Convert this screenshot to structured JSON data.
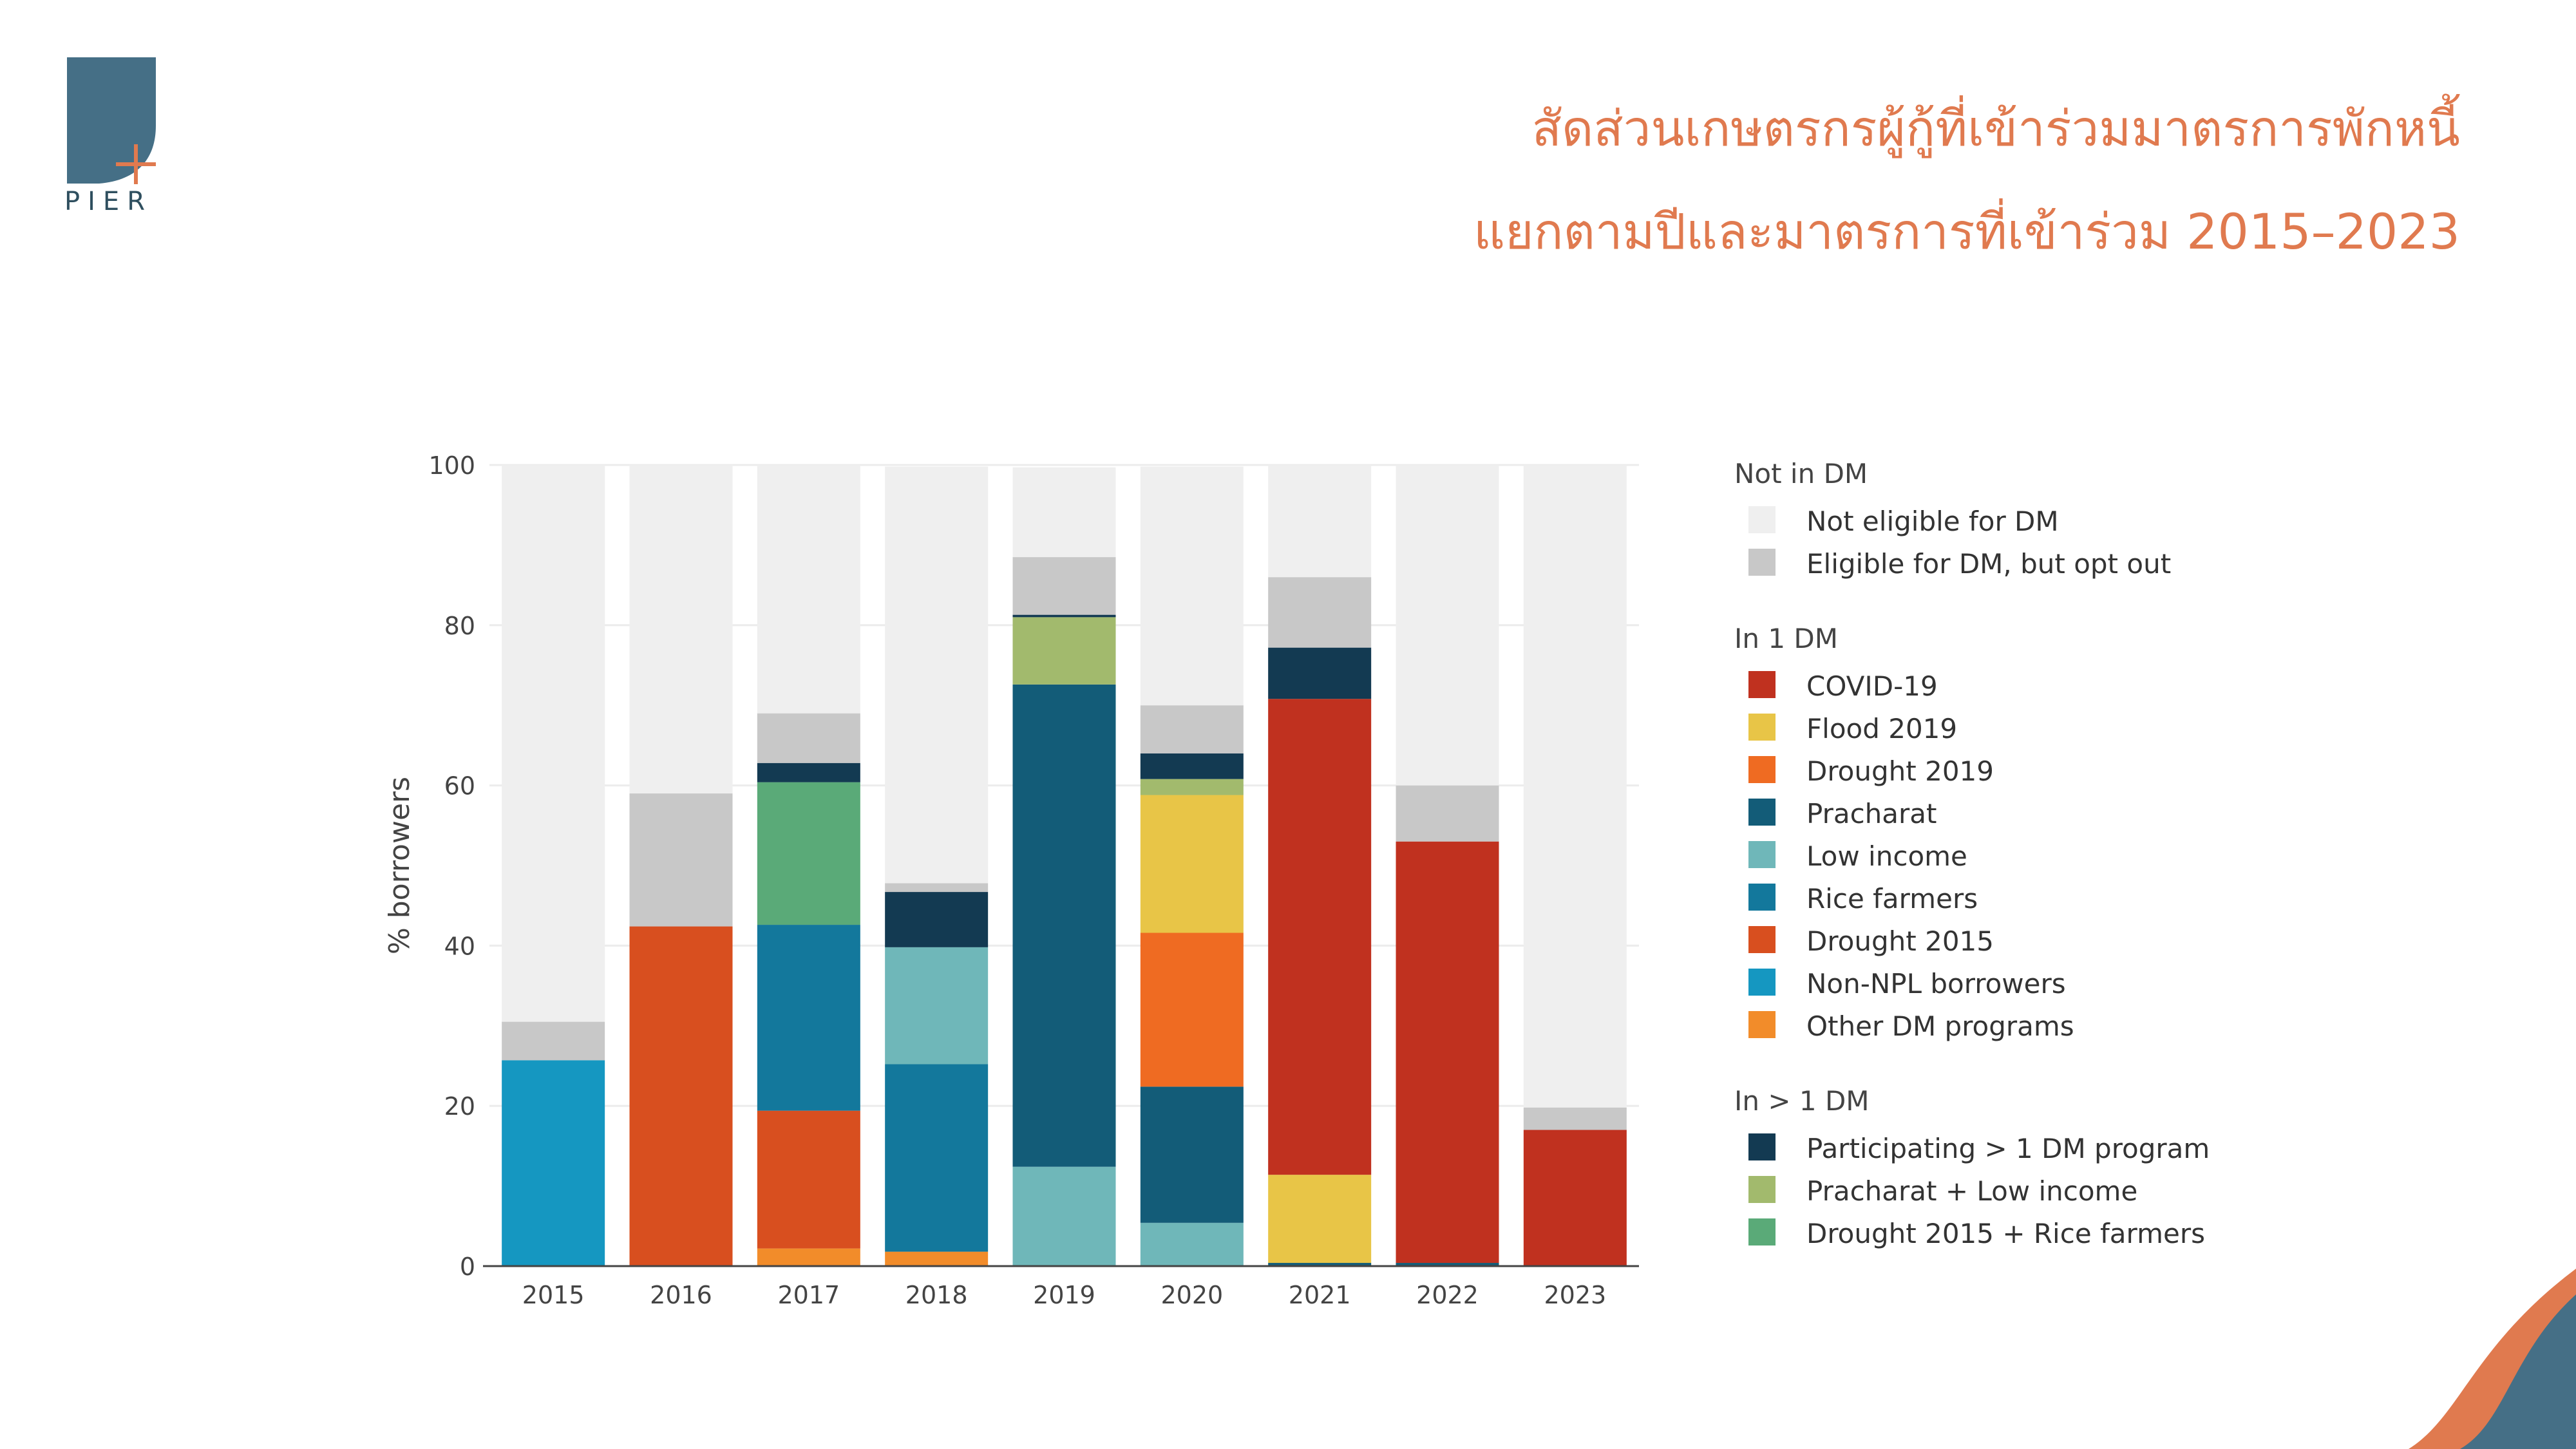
{
  "header": {
    "logo_text": "PIER",
    "title_line1": "สัดส่วนเกษตรกรผู้กู้ที่เข้าร่วมมาตรการพักหนี้",
    "title_line2": "แยกตามปีและมาตรการที่เข้าร่วม 2015–2023"
  },
  "colors": {
    "brand_orange": "#e07a4f",
    "brand_teal": "#456f86"
  },
  "chart_data": {
    "type": "bar",
    "stacked": true,
    "title": "",
    "xlabel": "",
    "ylabel": "% borrowers",
    "ylim": [
      0,
      100
    ],
    "yticks": [
      0,
      20,
      40,
      60,
      80,
      100
    ],
    "grid": true,
    "legend_position": "right",
    "categories": [
      "2015",
      "2016",
      "2017",
      "2018",
      "2019",
      "2020",
      "2021",
      "2022",
      "2023"
    ],
    "legend_groups": [
      {
        "title": "Not in DM",
        "series": [
          "Not eligible for DM",
          "Eligible for DM, but opt out"
        ]
      },
      {
        "title": "In 1 DM",
        "series": [
          "COVID-19",
          "Flood 2019",
          "Drought 2019",
          "Pracharat",
          "Low income",
          "Rice farmers",
          "Drought 2015",
          "Non-NPL borrowers",
          "Other DM programs"
        ]
      },
      {
        "title": "In > 1 DM",
        "series": [
          "Participating > 1 DM program",
          "Pracharat + Low income",
          "Drought 2015 + Rice farmers"
        ]
      }
    ],
    "stack_order": [
      "Other DM programs",
      "Non-NPL borrowers",
      "Drought 2015",
      "Rice farmers",
      "Low income",
      "Pracharat",
      "Drought 2019",
      "Flood 2019",
      "COVID-19",
      "Drought 2015 + Rice farmers",
      "Pracharat + Low income",
      "Participating > 1 DM program",
      "Eligible for DM, but opt out",
      "Not eligible for DM"
    ],
    "series": [
      {
        "name": "Not eligible for DM",
        "color": "#efefef",
        "values": [
          69.5,
          41.0,
          31.0,
          52.0,
          11.2,
          29.8,
          14.0,
          40.0,
          80.2
        ]
      },
      {
        "name": "Eligible for DM, but opt out",
        "color": "#c8c8c8",
        "values": [
          4.8,
          16.6,
          6.2,
          1.1,
          7.2,
          6.0,
          8.8,
          7.0,
          2.8
        ]
      },
      {
        "name": "COVID-19",
        "color": "#c0311f",
        "values": [
          0,
          0,
          0,
          0,
          0,
          0,
          59.4,
          52.6,
          17.0
        ]
      },
      {
        "name": "Flood 2019",
        "color": "#e8c547",
        "values": [
          0,
          0,
          0,
          0,
          0,
          17.2,
          11.0,
          0,
          0
        ]
      },
      {
        "name": "Drought 2019",
        "color": "#ef6b22",
        "values": [
          0,
          0,
          0,
          0,
          0,
          19.2,
          0,
          0,
          0
        ]
      },
      {
        "name": "Pracharat",
        "color": "#135c78",
        "values": [
          0,
          0,
          0,
          0,
          60.2,
          17.0,
          0.4,
          0.4,
          0
        ]
      },
      {
        "name": "Low income",
        "color": "#6fb7b9",
        "values": [
          0,
          0,
          0,
          14.6,
          12.4,
          5.4,
          0,
          0,
          0
        ]
      },
      {
        "name": "Rice farmers",
        "color": "#13789c",
        "values": [
          0,
          0,
          23.2,
          23.4,
          0,
          0,
          0,
          0,
          0
        ]
      },
      {
        "name": "Drought 2015",
        "color": "#d84f1f",
        "values": [
          0,
          42.4,
          17.2,
          0,
          0,
          0,
          0,
          0,
          0
        ]
      },
      {
        "name": "Non-NPL borrowers",
        "color": "#1597c1",
        "values": [
          25.7,
          0,
          0,
          0,
          0,
          0,
          0,
          0,
          0
        ]
      },
      {
        "name": "Other DM programs",
        "color": "#f28c2a",
        "values": [
          0,
          0,
          2.2,
          1.8,
          0,
          0,
          0,
          0,
          0
        ]
      },
      {
        "name": "Participating > 1 DM program",
        "color": "#133a52",
        "values": [
          0,
          0,
          2.4,
          6.9,
          0.3,
          3.2,
          6.4,
          0,
          0
        ]
      },
      {
        "name": "Pracharat + Low income",
        "color": "#a2ba6d",
        "values": [
          0,
          0,
          0,
          0,
          8.4,
          2.0,
          0,
          0,
          0
        ]
      },
      {
        "name": "Drought 2015 + Rice farmers",
        "color": "#5aaa78",
        "values": [
          0,
          0,
          17.8,
          0,
          0,
          0,
          0,
          0,
          0
        ]
      }
    ]
  }
}
